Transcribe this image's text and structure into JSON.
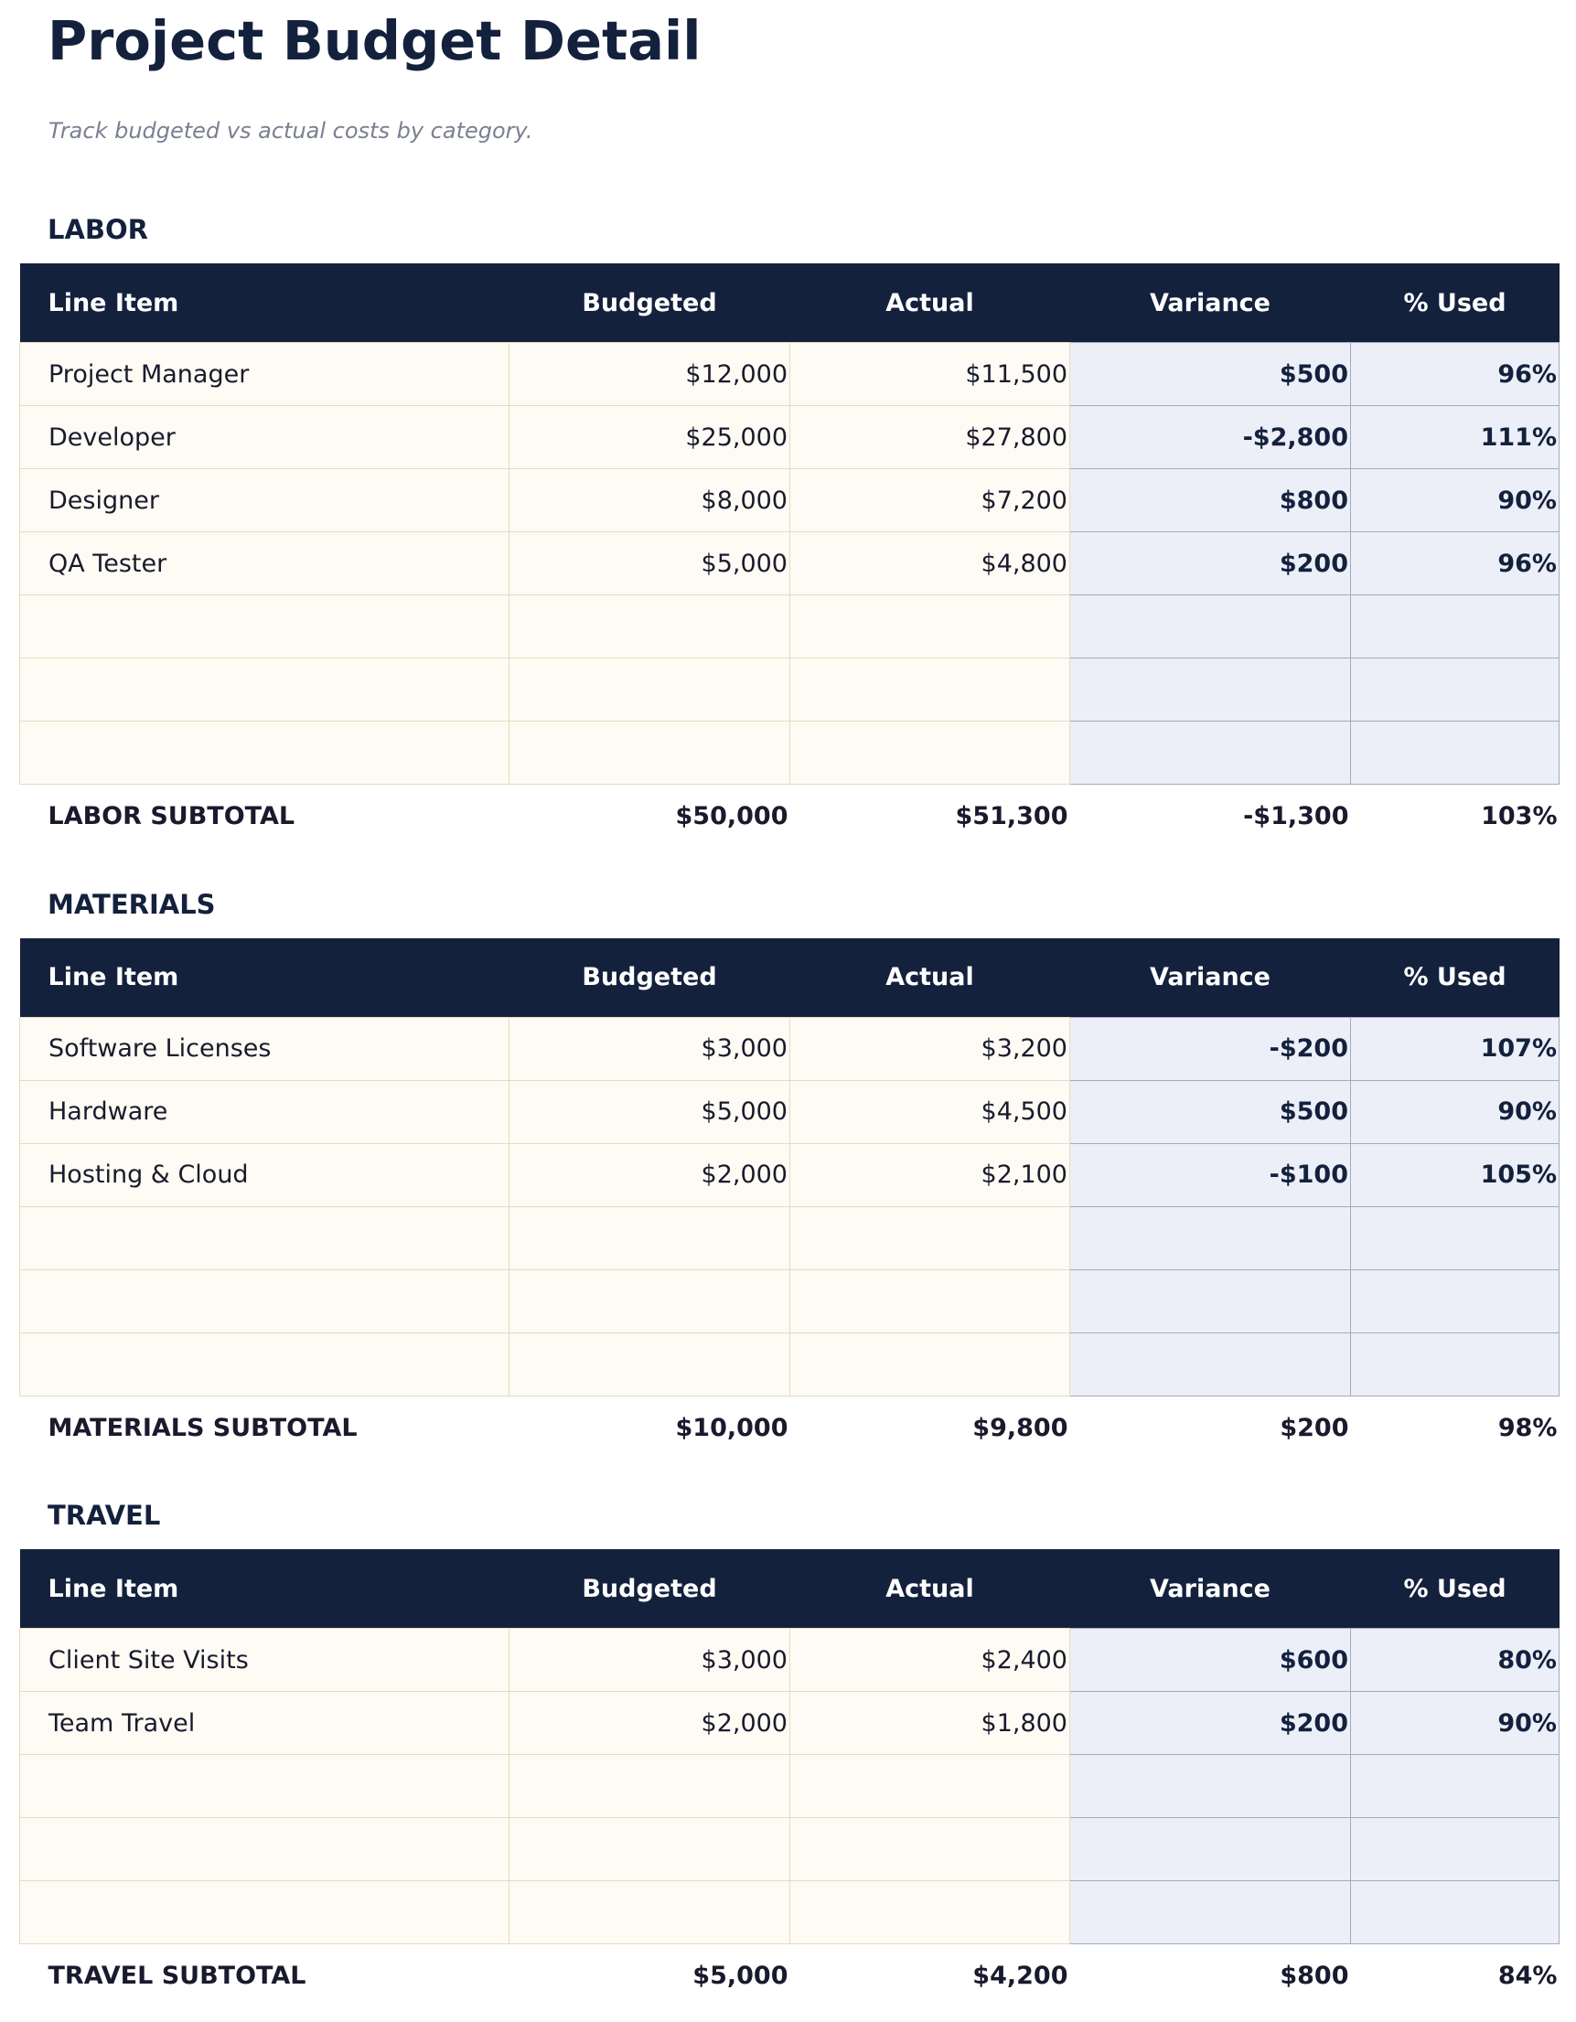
{
  "header": {
    "title": "Project Budget Detail",
    "subtitle": "Track budgeted vs actual costs by category."
  },
  "sections": [
    {
      "heading": "LABOR",
      "columns": [
        "Line Item",
        "Budgeted",
        "Actual",
        "Variance",
        "% Used"
      ],
      "rows": [
        [
          "Project Manager",
          "$12,000",
          "$11,500",
          "$500",
          "96%"
        ],
        [
          "Developer",
          "$25,000",
          "$27,800",
          "-$2,800",
          "111%"
        ],
        [
          "Designer",
          "$8,000",
          "$7,200",
          "$800",
          "90%"
        ],
        [
          "QA Tester",
          "$5,000",
          "$4,800",
          "$200",
          "96%"
        ]
      ],
      "subtotal": [
        "LABOR SUBTOTAL",
        "$50,000",
        "$51,300",
        "-$1,300",
        "103%"
      ]
    },
    {
      "heading": "MATERIALS",
      "columns": [
        "Line Item",
        "Budgeted",
        "Actual",
        "Variance",
        "% Used"
      ],
      "rows": [
        [
          "Software Licenses",
          "$3,000",
          "$3,200",
          "-$200",
          "107%"
        ],
        [
          "Hardware",
          "$5,000",
          "$4,500",
          "$500",
          "90%"
        ],
        [
          "Hosting & Cloud",
          "$2,000",
          "$2,100",
          "-$100",
          "105%"
        ]
      ],
      "subtotal": [
        "MATERIALS SUBTOTAL",
        "$10,000",
        "$9,800",
        "$200",
        "98%"
      ]
    },
    {
      "heading": "TRAVEL",
      "columns": [
        "Line Item",
        "Budgeted",
        "Actual",
        "Variance",
        "% Used"
      ],
      "rows": [
        [
          "Client Site Visits",
          "$3,000",
          "$2,400",
          "$600",
          "80%"
        ],
        [
          "Team Travel",
          "$2,000",
          "$1,800",
          "$200",
          "90%"
        ]
      ],
      "subtotal": [
        "TRAVEL SUBTOTAL",
        "$5,000",
        "$4,200",
        "$800",
        "84%"
      ]
    }
  ]
}
